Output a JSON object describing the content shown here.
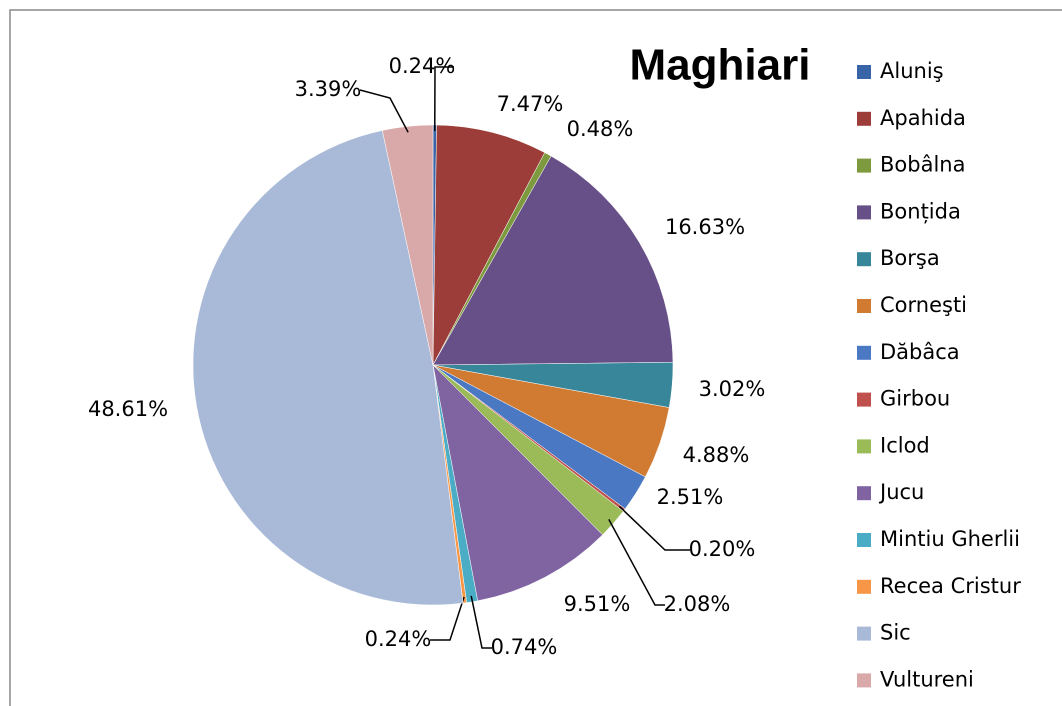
{
  "chart_data": {
    "type": "pie",
    "title": "Maghiari",
    "categories": [
      "Aluniş",
      "Apahida",
      "Bobâlna",
      "Bonțida",
      "Borşa",
      "Corneşti",
      "Dăbâca",
      "Girbou",
      "Iclod",
      "Jucu",
      "Mintiu Gherlii",
      "Recea Cristur",
      "Sic",
      "Vultureni"
    ],
    "values": [
      0.24,
      7.47,
      0.48,
      16.63,
      3.02,
      4.88,
      2.51,
      0.2,
      2.08,
      9.51,
      0.74,
      0.24,
      48.61,
      3.39
    ],
    "value_labels": [
      "0.24%",
      "7.47%",
      "0.48%",
      "16.63%",
      "3.02%",
      "4.88%",
      "2.51%",
      "0.20%",
      "2.08%",
      "9.51%",
      "0.74%",
      "0.24%",
      "48.61%",
      "3.39%"
    ],
    "colors": [
      "#3a64a8",
      "#9c3d3a",
      "#7e9a3e",
      "#674f87",
      "#37869a",
      "#d07a32",
      "#4a78c2",
      "#c0504d",
      "#9bbb59",
      "#8064a2",
      "#4bacc6",
      "#f79646",
      "#a9b9d8",
      "#d8a9a8"
    ],
    "legend": "right"
  }
}
